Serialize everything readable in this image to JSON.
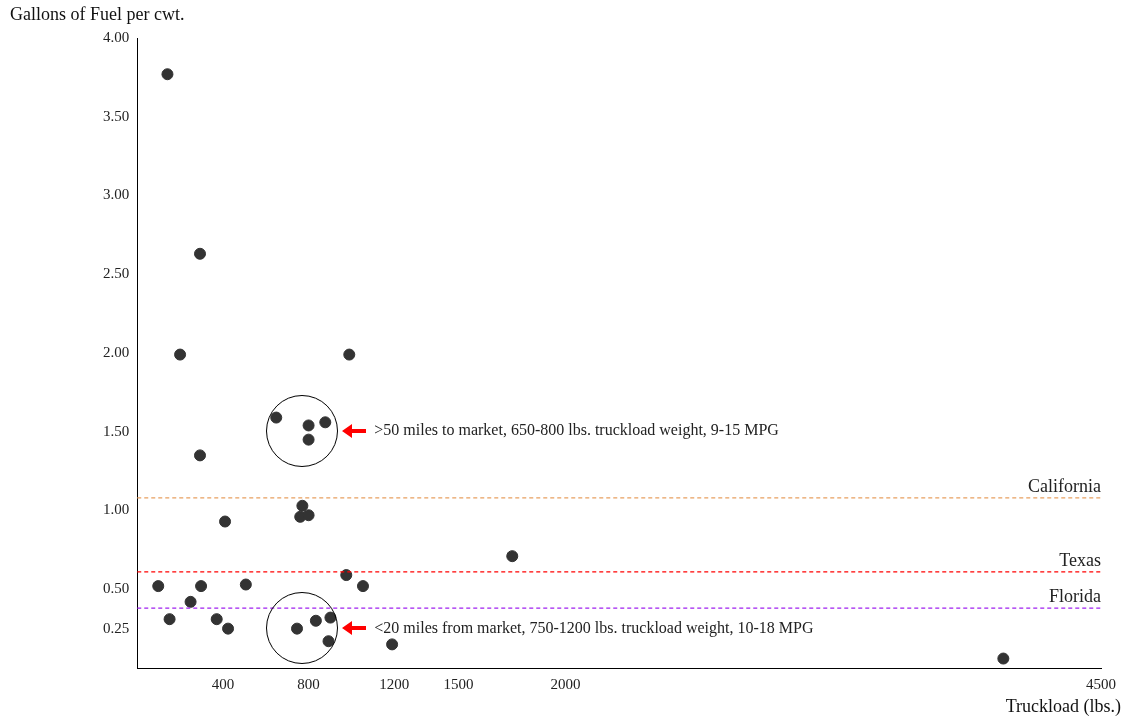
{
  "chart_data": {
    "type": "scatter",
    "xlabel": "Truckload (lbs.)",
    "ylabel": "Gallons of Fuel per cwt.",
    "x": [
      141,
      293,
      200,
      990,
      649,
      800,
      878,
      800,
      293,
      771,
      761,
      800,
      410,
      1751,
      976,
      98,
      298,
      507,
      1054,
      249,
      151,
      371,
      424,
      746,
      834,
      902,
      893,
      1190,
      4044
    ],
    "values": [
      3.77,
      2.63,
      1.99,
      1.99,
      1.59,
      1.54,
      1.56,
      1.45,
      1.35,
      1.03,
      0.96,
      0.97,
      0.93,
      0.71,
      0.59,
      0.52,
      0.52,
      0.53,
      0.52,
      0.42,
      0.31,
      0.31,
      0.25,
      0.25,
      0.3,
      0.32,
      0.17,
      0.15,
      0.06
    ],
    "color": "#333333",
    "marker": "circle",
    "xlim": [
      0,
      4500
    ],
    "xticks": [
      400,
      800,
      1200,
      1500,
      2000,
      4500
    ],
    "ylim": [
      0,
      4
    ],
    "yticks": [
      {
        "value": 0.25,
        "label": "0.25"
      },
      {
        "value": 0.5,
        "label": "0.50"
      },
      {
        "value": 1,
        "label": "1.00"
      },
      {
        "value": 1.5,
        "label": "1.50"
      },
      {
        "value": 2,
        "label": "2.00"
      },
      {
        "value": 2.5,
        "label": "2.50"
      },
      {
        "value": 3,
        "label": "3.00"
      },
      {
        "value": 3.5,
        "label": "3.50"
      },
      {
        "value": 4,
        "label": "4.00"
      }
    ],
    "grid": false,
    "legend": false,
    "ref_lines": [
      {
        "axis": "y",
        "value": 1.08,
        "label": "California",
        "color": "#e8a060",
        "line_style": "dashed"
      },
      {
        "axis": "y",
        "value": 0.61,
        "label": "Texas",
        "color": "#ff0000",
        "line_style": "dashed"
      },
      {
        "axis": "y",
        "value": 0.38,
        "label": "Florida",
        "color": "#a020f0",
        "line_style": "dashed"
      }
    ],
    "annotations": [
      ">50 miles to market, 650-800 lbs. truckload weight, 9-15 MPG",
      "<20 miles from market, 750-1200 lbs. truckload weight, 10-18 MPG"
    ]
  }
}
